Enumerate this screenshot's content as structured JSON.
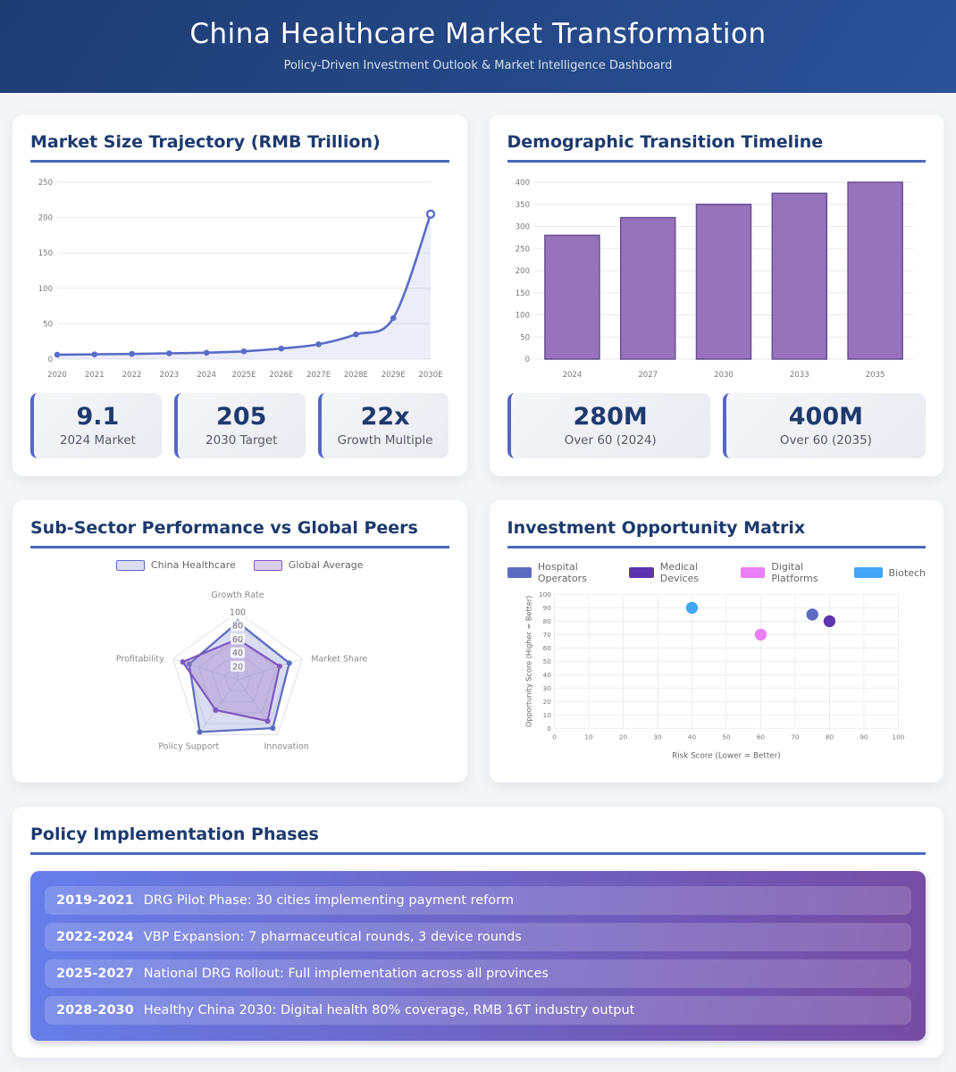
{
  "header": {
    "title": "China Healthcare Market Transformation",
    "subtitle": "Policy-Driven Investment Outlook & Market Intelligence Dashboard"
  },
  "colors": {
    "header_gradient": [
      "#1e3c72",
      "#2a5298"
    ],
    "card_title": "#1d3a6e",
    "title_underline": "#4a69bd",
    "stat_accent": "#5667c5",
    "line_series": "#5b6bc8",
    "bar_series": "#9673ba",
    "policy_gradient": [
      "#667eea",
      "#764ba2"
    ]
  },
  "cards": {
    "market": {
      "title": "Market Size Trajectory (RMB Trillion)",
      "stats": [
        {
          "value": "9.1",
          "label": "2024 Market"
        },
        {
          "value": "205",
          "label": "2030 Target"
        },
        {
          "value": "22x",
          "label": "Growth Multiple"
        }
      ]
    },
    "demographic": {
      "title": "Demographic Transition Timeline",
      "stats": [
        {
          "value": "280M",
          "label": "Over 60 (2024)"
        },
        {
          "value": "400M",
          "label": "Over 60 (2035)"
        }
      ]
    },
    "radar": {
      "title": "Sub-Sector Performance vs Global Peers"
    },
    "matrix": {
      "title": "Investment Opportunity Matrix"
    },
    "policy": {
      "title": "Policy Implementation Phases",
      "phases": [
        {
          "years": "2019-2021",
          "text": "DRG Pilot Phase: 30 cities implementing payment reform"
        },
        {
          "years": "2022-2024",
          "text": "VBP Expansion: 7 pharmaceutical rounds, 3 device rounds"
        },
        {
          "years": "2025-2027",
          "text": "National DRG Rollout: Full implementation across all provinces"
        },
        {
          "years": "2028-2030",
          "text": "Healthy China 2030: Digital health 80% coverage, RMB 16T industry output"
        }
      ]
    }
  },
  "chart_data": [
    {
      "type": "line",
      "title": "Market Size Trajectory (RMB Trillion)",
      "categories": [
        "2020",
        "2021",
        "2022",
        "2023",
        "2024",
        "2025E",
        "2026E",
        "2027E",
        "2028E",
        "2029E",
        "2030E"
      ],
      "values": [
        6.2,
        6.8,
        7.4,
        8.2,
        9.1,
        11,
        15,
        21,
        35,
        58,
        205
      ],
      "xlabel": "",
      "ylabel": "",
      "ylim": [
        0,
        250
      ],
      "ytick_step": 50,
      "grid": true,
      "line_color": "#5b6bc8",
      "fill_color": "rgba(91,107,200,0.12)"
    },
    {
      "type": "bar",
      "title": "Demographic Transition Timeline",
      "categories": [
        "2024",
        "2027",
        "2030",
        "2033",
        "2035"
      ],
      "values": [
        280,
        320,
        350,
        375,
        400
      ],
      "xlabel": "",
      "ylabel": "",
      "ylim": [
        0,
        400
      ],
      "ytick_step": 50,
      "grid": true,
      "bar_color": "#9673ba",
      "bar_border": "#6b4e94"
    },
    {
      "type": "radar",
      "title": "Sub-Sector Performance vs Global Peers",
      "axes": [
        "Growth Rate",
        "Market Share",
        "Innovation",
        "Policy Support",
        "Profitability"
      ],
      "rings": [
        20,
        40,
        60,
        80,
        100
      ],
      "max": 100,
      "legend_position": "top",
      "series": [
        {
          "name": "China Healthcare",
          "values": [
            85,
            80,
            88,
            95,
            75
          ],
          "color": "#5c6bc0",
          "fill": "rgba(121,134,203,0.28)"
        },
        {
          "name": "Global Average",
          "values": [
            60,
            65,
            75,
            55,
            85
          ],
          "color": "#7e57c2",
          "fill": "rgba(158,120,200,0.38)"
        }
      ]
    },
    {
      "type": "scatter",
      "title": "Investment Opportunity Matrix",
      "xlabel": "Risk Score (Lower = Better)",
      "ylabel": "Opportunity Score (Higher = Better)",
      "xlim": [
        0,
        100
      ],
      "ylim": [
        0,
        100
      ],
      "tick_step": 10,
      "grid": true,
      "legend_position": "top",
      "series": [
        {
          "name": "Hospital Operators",
          "color": "#5c6bc0",
          "points": [
            [
              75,
              85
            ]
          ]
        },
        {
          "name": "Medical Devices",
          "color": "#5e35b1",
          "points": [
            [
              80,
              80
            ]
          ]
        },
        {
          "name": "Digital Platforms",
          "color": "#e97ff2",
          "points": [
            [
              60,
              70
            ]
          ]
        },
        {
          "name": "Biotech",
          "color": "#42a5f5",
          "points": [
            [
              40,
              90
            ]
          ]
        }
      ]
    }
  ]
}
